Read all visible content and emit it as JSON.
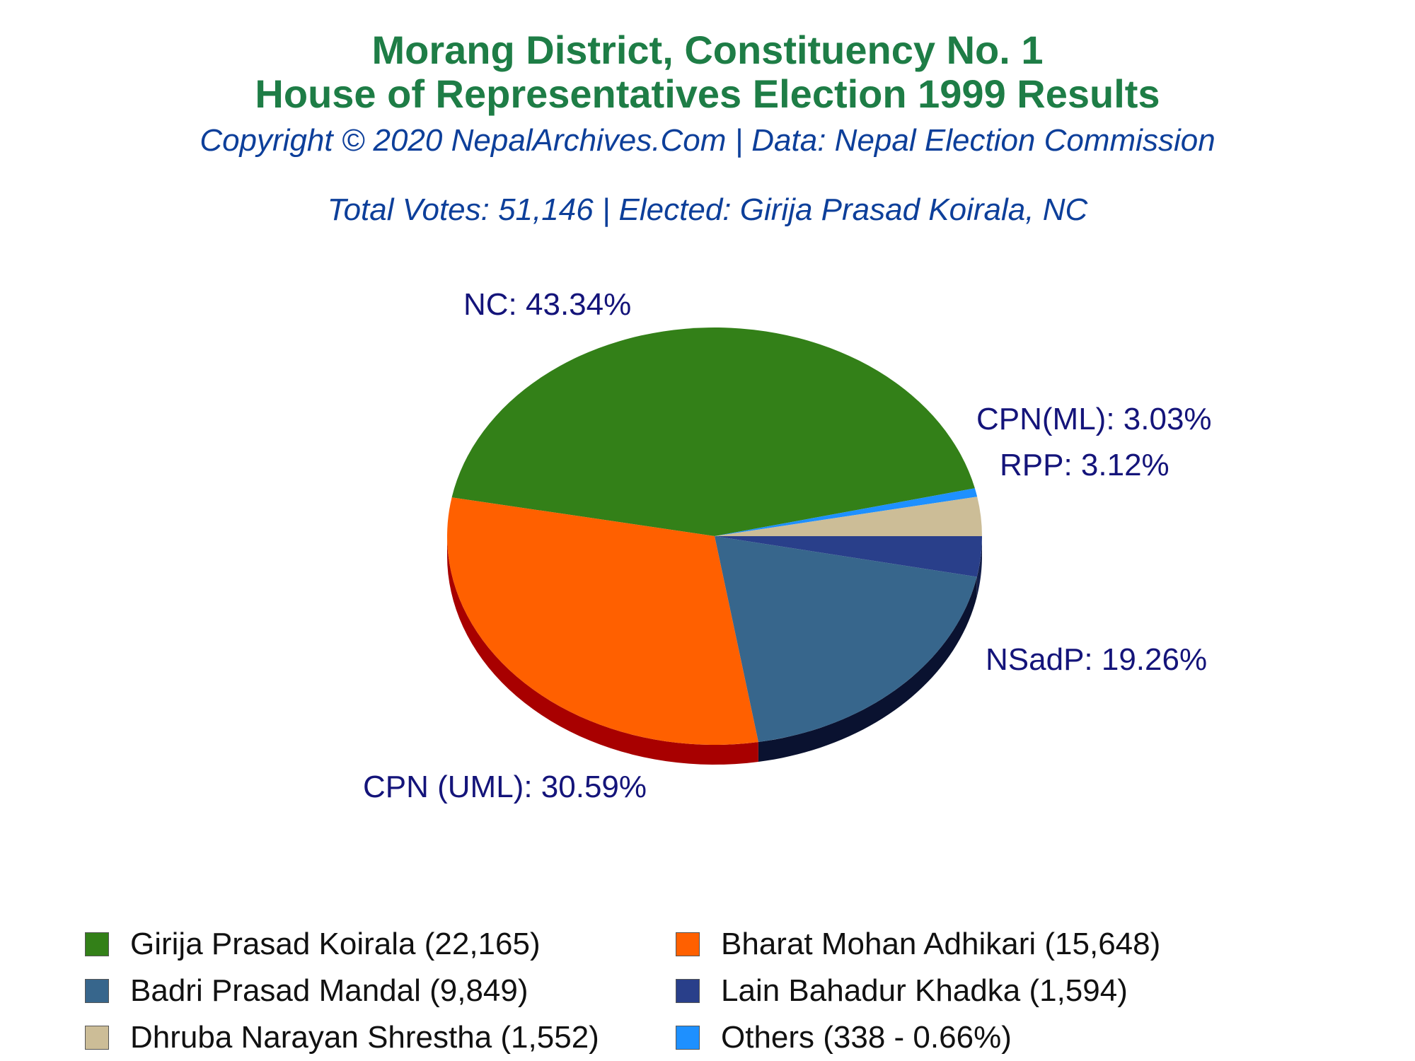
{
  "header": {
    "title_line1": "Morang District, Constituency No. 1",
    "title_line2": "House of Representatives Election 1999 Results",
    "copyright": "Copyright © 2020 NepalArchives.Com | Data: Nepal Election Commission",
    "subtitle": "Total Votes: 51,146 | Elected: Girija Prasad Koirala, NC"
  },
  "chart_data": {
    "type": "pie",
    "title": "Morang District, Constituency No. 1 House of Representatives Election 1999 Results",
    "slices": [
      {
        "party": "NC",
        "label": "NC: 43.34%",
        "percent": 43.34,
        "votes": 22165,
        "candidate": "Girija Prasad Koirala",
        "color": "#338018",
        "side_color": "#1f5a0d"
      },
      {
        "party": "CPN(ML)",
        "label": "",
        "percent": 0.66,
        "votes": 338,
        "candidate": "Others",
        "color": "#1e90ff",
        "side_color": "#0d5fb3"
      },
      {
        "party": "CPN(ML)",
        "label": "CPN(ML): 3.03%",
        "percent": 3.03,
        "votes": 1552,
        "candidate": "Dhruba Narayan Shrestha",
        "color": "#ccbd97",
        "side_color": "#8d8266"
      },
      {
        "party": "RPP",
        "label": "RPP: 3.12%",
        "percent": 3.12,
        "votes": 1594,
        "candidate": "Lain Bahadur Khadka",
        "color": "#293f8a",
        "side_color": "#141f4a"
      },
      {
        "party": "NSadP",
        "label": "NSadP: 19.26%",
        "percent": 19.26,
        "votes": 9849,
        "candidate": "Badri Prasad Mandal",
        "color": "#37668c",
        "side_color": "#0a1230"
      },
      {
        "party": "CPN (UML)",
        "label": "CPN (UML): 30.59%",
        "percent": 30.59,
        "votes": 15648,
        "candidate": "Bharat Mohan Adhikari",
        "color": "#ff6000",
        "side_color": "#a80000"
      }
    ],
    "legend_placement": "bottom",
    "legend": [
      {
        "text": "Girija Prasad Koirala (22,165)",
        "color": "#338018"
      },
      {
        "text": "Bharat Mohan Adhikari (15,648)",
        "color": "#ff6000"
      },
      {
        "text": "Badri Prasad Mandal (9,849)",
        "color": "#37668c"
      },
      {
        "text": "Lain Bahadur Khadka (1,594)",
        "color": "#293f8a"
      },
      {
        "text": "Dhruba Narayan Shrestha (1,552)",
        "color": "#ccbd97"
      },
      {
        "text": "Others (338 - 0.66%)",
        "color": "#1e90ff"
      }
    ]
  }
}
